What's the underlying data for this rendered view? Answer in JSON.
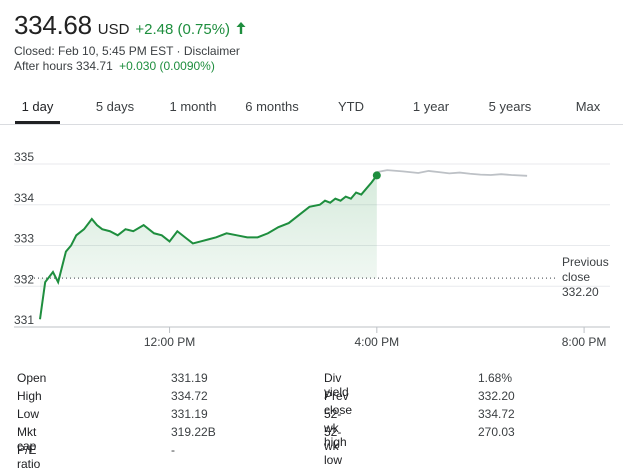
{
  "quote": {
    "price": "334.68",
    "currency": "USD",
    "change": "+2.48 (0.75%)",
    "closed_text": "Closed: Feb 10, 5:45 PM EST",
    "separator": "·",
    "disclaimer": "Disclaimer",
    "after_hours_label": "After hours",
    "after_hours_price": "334.71",
    "after_hours_change": "+0.030 (0.0090%)",
    "arrow_icon": "arrow-up-icon",
    "positive_color": "#1e8e3e"
  },
  "tabs": [
    {
      "label": "1 day",
      "active": true
    },
    {
      "label": "5 days",
      "active": false
    },
    {
      "label": "1 month",
      "active": false
    },
    {
      "label": "6 months",
      "active": false
    },
    {
      "label": "YTD",
      "active": false
    },
    {
      "label": "1 year",
      "active": false
    },
    {
      "label": "5 years",
      "active": false
    },
    {
      "label": "Max",
      "active": false
    }
  ],
  "chart_data": {
    "type": "line",
    "y_ticks": [
      "335",
      "334",
      "333",
      "332",
      "331"
    ],
    "ylim": [
      331,
      335
    ],
    "x_ticks": [
      "12:00 PM",
      "4:00 PM",
      "8:00 PM"
    ],
    "x_tick_hours": [
      12,
      16,
      20
    ],
    "xlim": [
      9.5,
      20.5
    ],
    "previous_close": {
      "label_line1": "Previous",
      "label_line2": "close",
      "value": 332.2,
      "value_text": "332.20"
    },
    "series": [
      {
        "session": "regular",
        "color": "#1e8e3e",
        "x": [
          9.5,
          9.6,
          9.75,
          9.85,
          10.0,
          10.1,
          10.2,
          10.35,
          10.5,
          10.6,
          10.7,
          10.85,
          11.0,
          11.15,
          11.3,
          11.5,
          11.7,
          11.85,
          12.0,
          12.15,
          12.3,
          12.45,
          12.6,
          12.75,
          12.9,
          13.1,
          13.3,
          13.5,
          13.7,
          13.9,
          14.1,
          14.3,
          14.5,
          14.7,
          14.9,
          15.0,
          15.1,
          15.2,
          15.3,
          15.4,
          15.5,
          15.6,
          15.7,
          15.8,
          15.9,
          16.0
        ],
        "y": [
          331.19,
          332.1,
          332.35,
          332.1,
          332.85,
          333.0,
          333.25,
          333.4,
          333.65,
          333.5,
          333.4,
          333.35,
          333.25,
          333.4,
          333.35,
          333.5,
          333.3,
          333.25,
          333.1,
          333.35,
          333.2,
          333.05,
          333.1,
          333.15,
          333.2,
          333.3,
          333.25,
          333.2,
          333.2,
          333.3,
          333.45,
          333.55,
          333.75,
          333.95,
          334.0,
          334.1,
          334.05,
          334.15,
          334.1,
          334.2,
          334.15,
          334.3,
          334.25,
          334.4,
          334.55,
          334.72
        ]
      },
      {
        "session": "after_hours",
        "color": "#bdc1c6",
        "x": [
          16.0,
          16.2,
          16.5,
          16.8,
          17.0,
          17.2,
          17.4,
          17.6,
          17.8,
          18.0,
          18.2,
          18.4,
          18.6,
          18.9
        ],
        "y": [
          334.8,
          334.85,
          334.82,
          334.78,
          334.83,
          334.8,
          334.77,
          334.79,
          334.76,
          334.74,
          334.73,
          334.75,
          334.73,
          334.71
        ]
      }
    ]
  },
  "stats": {
    "left": [
      {
        "label": "Open",
        "value": "331.19"
      },
      {
        "label": "High",
        "value": "334.72"
      },
      {
        "label": "Low",
        "value": "331.19"
      },
      {
        "label": "Mkt cap",
        "value": "319.22B"
      },
      {
        "label": "P/E ratio",
        "value": "-"
      }
    ],
    "right": [
      {
        "label": "Div yield",
        "value": "1.68%"
      },
      {
        "label": "Prev close",
        "value": "332.20"
      },
      {
        "label": "52-wk high",
        "value": "334.72"
      },
      {
        "label": "52-wk low",
        "value": "270.03"
      }
    ]
  }
}
